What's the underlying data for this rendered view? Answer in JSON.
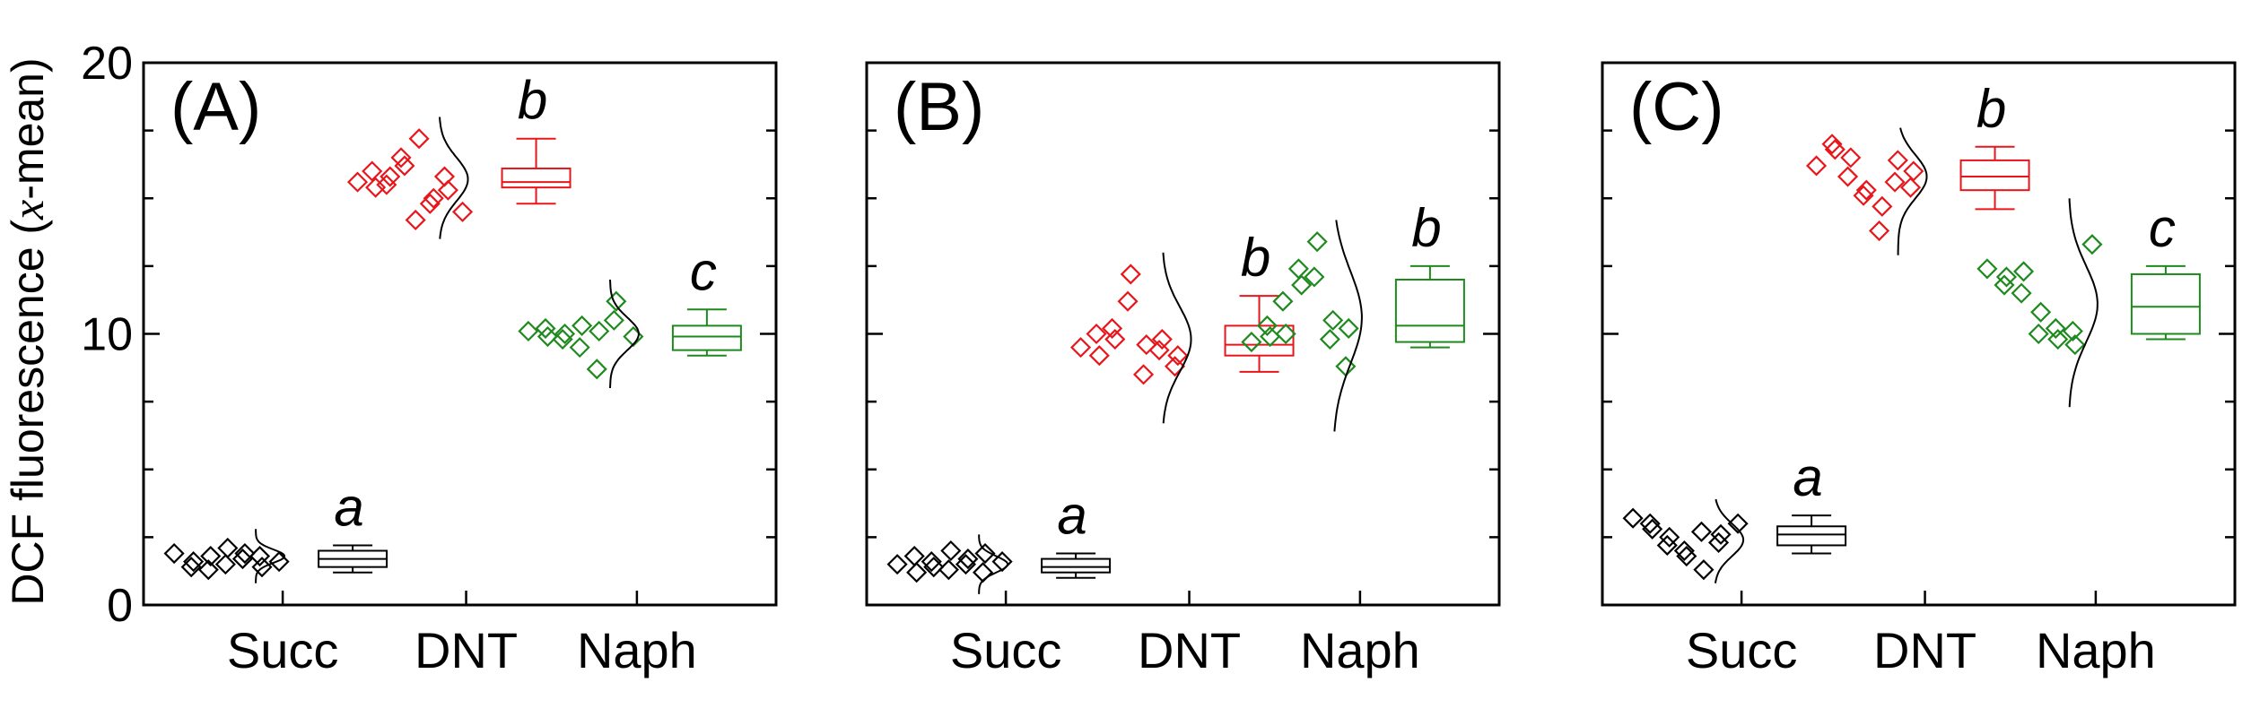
{
  "chart_data": {
    "type": "box",
    "ylabel": {
      "pre": "DCF fluorescence (",
      "sym": "x",
      "post": "-mean)"
    },
    "ylim": [
      0,
      20
    ],
    "yticks": [
      0,
      10,
      20
    ],
    "categories": [
      "Succ",
      "DNT",
      "Naph"
    ],
    "colors": {
      "Succ": "#000000",
      "DNT": "#e8161b",
      "Naph": "#1e8a1e"
    },
    "panels": [
      {
        "label": "(A)",
        "groups": [
          {
            "category": "Succ",
            "sig": "a",
            "points": [
              1.9,
              1.6,
              1.4,
              1.8,
              1.3,
              2.1,
              1.5,
              1.9,
              1.7,
              1.4,
              1.8,
              1.6
            ],
            "box": {
              "whisker_low": 1.2,
              "q1": 1.4,
              "median": 1.7,
              "q3": 2.0,
              "whisker_high": 2.2
            },
            "dist": {
              "mean": 1.8,
              "sd": 0.25,
              "min": 0.8,
              "max": 2.8
            }
          },
          {
            "category": "DNT",
            "sig": "b",
            "points": [
              15.6,
              15.4,
              16.0,
              15.8,
              15.5,
              16.2,
              16.5,
              17.2,
              14.2,
              15.0,
              14.8,
              15.3,
              15.8,
              14.5
            ],
            "box": {
              "whisker_low": 14.8,
              "q1": 15.4,
              "median": 15.6,
              "q3": 16.1,
              "whisker_high": 17.2
            },
            "dist": {
              "mean": 15.7,
              "sd": 0.8,
              "min": 13.5,
              "max": 18.0
            }
          },
          {
            "category": "Naph",
            "sig": "c",
            "points": [
              10.1,
              9.9,
              10.2,
              10.0,
              9.8,
              10.3,
              9.5,
              10.1,
              8.7,
              11.2,
              10.5,
              9.9
            ],
            "box": {
              "whisker_low": 9.2,
              "q1": 9.4,
              "median": 9.9,
              "q3": 10.3,
              "whisker_high": 10.9
            },
            "dist": {
              "mean": 10.0,
              "sd": 0.6,
              "min": 8.0,
              "max": 12.0
            }
          }
        ]
      },
      {
        "label": "(B)",
        "groups": [
          {
            "category": "Succ",
            "sig": "a",
            "points": [
              1.5,
              1.2,
              1.8,
              1.4,
              1.6,
              2.0,
              1.3,
              1.7,
              1.5,
              1.9,
              1.2,
              1.6
            ],
            "box": {
              "whisker_low": 1.0,
              "q1": 1.2,
              "median": 1.4,
              "q3": 1.7,
              "whisker_high": 1.9
            },
            "dist": {
              "mean": 1.5,
              "sd": 0.3,
              "min": 0.4,
              "max": 2.6
            }
          },
          {
            "category": "DNT",
            "sig": "b",
            "points": [
              9.5,
              9.2,
              10.0,
              9.8,
              10.2,
              12.2,
              11.2,
              9.6,
              8.5,
              9.8,
              9.4,
              9.2,
              8.8
            ],
            "box": {
              "whisker_low": 8.6,
              "q1": 9.2,
              "median": 9.6,
              "q3": 10.3,
              "whisker_high": 11.4
            },
            "dist": {
              "mean": 9.8,
              "sd": 1.2,
              "min": 6.7,
              "max": 13.0
            }
          },
          {
            "category": "Naph",
            "sig": "b",
            "points": [
              9.7,
              9.9,
              10.3,
              10.0,
              11.2,
              11.8,
              12.4,
              13.4,
              12.1,
              10.5,
              9.8,
              10.2,
              8.8
            ],
            "box": {
              "whisker_low": 9.5,
              "q1": 9.7,
              "median": 10.3,
              "q3": 12.0,
              "whisker_high": 12.5
            },
            "dist": {
              "mean": 10.6,
              "sd": 1.7,
              "min": 6.4,
              "max": 14.2
            }
          }
        ]
      },
      {
        "label": "(C)",
        "groups": [
          {
            "category": "Succ",
            "sig": "a",
            "points": [
              3.2,
              2.8,
              3.0,
              2.5,
              2.2,
              1.8,
              2.0,
              1.3,
              2.7,
              2.6,
              2.3,
              3.0
            ],
            "box": {
              "whisker_low": 1.9,
              "q1": 2.2,
              "median": 2.6,
              "q3": 2.9,
              "whisker_high": 3.3
            },
            "dist": {
              "mean": 2.4,
              "sd": 0.6,
              "min": 0.8,
              "max": 3.9
            }
          },
          {
            "category": "DNT",
            "sig": "b",
            "points": [
              16.2,
              16.8,
              17.0,
              16.5,
              15.8,
              15.3,
              15.1,
              14.7,
              13.8,
              16.4,
              15.6,
              16.0,
              15.4
            ],
            "box": {
              "whisker_low": 14.6,
              "q1": 15.3,
              "median": 15.8,
              "q3": 16.4,
              "whisker_high": 16.9
            },
            "dist": {
              "mean": 15.8,
              "sd": 0.8,
              "min": 12.9,
              "max": 17.6
            }
          },
          {
            "category": "Naph",
            "sig": "c",
            "points": [
              12.4,
              12.1,
              11.8,
              12.3,
              11.5,
              10.8,
              10.0,
              9.8,
              10.2,
              9.6,
              10.1,
              13.3
            ],
            "box": {
              "whisker_low": 9.8,
              "q1": 10.0,
              "median": 11.0,
              "q3": 12.2,
              "whisker_high": 12.5
            },
            "dist": {
              "mean": 11.1,
              "sd": 1.4,
              "min": 7.3,
              "max": 15.0
            }
          }
        ]
      }
    ]
  }
}
